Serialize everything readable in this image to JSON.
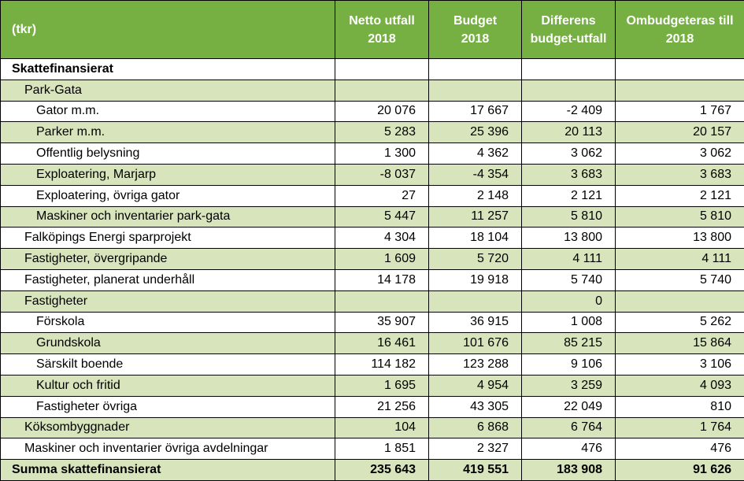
{
  "table": {
    "headers": {
      "label": "(tkr)",
      "col1": [
        "Netto utfall",
        "2018"
      ],
      "col2": [
        "Budget",
        "2018"
      ],
      "col3": [
        "Differens",
        "budget-utfall"
      ],
      "col4": [
        "Ombudgeteras till",
        "2018"
      ]
    },
    "rows": [
      {
        "label": "Skattefinansierat",
        "indent": 0,
        "style": "section",
        "values": [
          "",
          "",
          "",
          ""
        ]
      },
      {
        "label": "Park-Gata",
        "indent": 1,
        "style": "shade",
        "values": [
          "",
          "",
          "",
          ""
        ]
      },
      {
        "label": "Gator m.m.",
        "indent": 2,
        "style": "plain",
        "values": [
          "20 076",
          "17 667",
          "-2 409",
          "1 767"
        ]
      },
      {
        "label": "Parker m.m.",
        "indent": 2,
        "style": "shade",
        "values": [
          "5 283",
          "25 396",
          "20 113",
          "20 157"
        ]
      },
      {
        "label": "Offentlig belysning",
        "indent": 2,
        "style": "plain",
        "values": [
          "1 300",
          "4 362",
          "3 062",
          "3 062"
        ]
      },
      {
        "label": "Exploatering, Marjarp",
        "indent": 2,
        "style": "shade",
        "values": [
          "-8 037",
          "-4 354",
          "3 683",
          "3 683"
        ]
      },
      {
        "label": "Exploatering, övriga gator",
        "indent": 2,
        "style": "plain",
        "values": [
          "27",
          "2 148",
          "2 121",
          "2 121"
        ]
      },
      {
        "label": "Maskiner och inventarier park-gata",
        "indent": 2,
        "style": "shade",
        "values": [
          "5 447",
          "11 257",
          "5 810",
          "5 810"
        ]
      },
      {
        "label": "Falköpings Energi sparprojekt",
        "indent": 1,
        "style": "plain",
        "values": [
          "4 304",
          "18 104",
          "13 800",
          "13 800"
        ]
      },
      {
        "label": "Fastigheter, övergripande",
        "indent": 1,
        "style": "shade",
        "values": [
          "1 609",
          "5 720",
          "4 111",
          "4 111"
        ]
      },
      {
        "label": "Fastigheter, planerat underhåll",
        "indent": 1,
        "style": "plain",
        "values": [
          "14 178",
          "19 918",
          "5 740",
          "5 740"
        ]
      },
      {
        "label": "Fastigheter",
        "indent": 1,
        "style": "shade",
        "values": [
          "",
          "",
          "0",
          ""
        ]
      },
      {
        "label": "Förskola",
        "indent": 2,
        "style": "plain",
        "values": [
          "35 907",
          "36 915",
          "1 008",
          "5 262"
        ]
      },
      {
        "label": "Grundskola",
        "indent": 2,
        "style": "shade",
        "values": [
          "16 461",
          "101 676",
          "85 215",
          "15 864"
        ]
      },
      {
        "label": "Särskilt boende",
        "indent": 2,
        "style": "plain",
        "values": [
          "114 182",
          "123 288",
          "9 106",
          "3 106"
        ]
      },
      {
        "label": "Kultur och fritid",
        "indent": 2,
        "style": "shade",
        "values": [
          "1 695",
          "4 954",
          "3 259",
          "4 093"
        ]
      },
      {
        "label": "Fastigheter övriga",
        "indent": 2,
        "style": "plain",
        "values": [
          "21 256",
          "43 305",
          "22 049",
          "810"
        ]
      },
      {
        "label": "Köksombyggnader",
        "indent": 1,
        "style": "shade",
        "values": [
          "104",
          "6 868",
          "6 764",
          "1 764"
        ]
      },
      {
        "label": "Maskiner och inventarier övriga avdelningar",
        "indent": 1,
        "style": "plain",
        "values": [
          "1 851",
          "2 327",
          "476",
          "476"
        ]
      },
      {
        "label": "Summa skattefinansierat",
        "indent": 0,
        "style": "total",
        "values": [
          "235 643",
          "419 551",
          "183 908",
          "91 626"
        ]
      }
    ]
  },
  "colors": {
    "header_bg": "#76b043",
    "header_text": "#ffffff",
    "shade_row": "#d8e4bc",
    "plain_row": "#ffffff",
    "border": "#000000"
  }
}
